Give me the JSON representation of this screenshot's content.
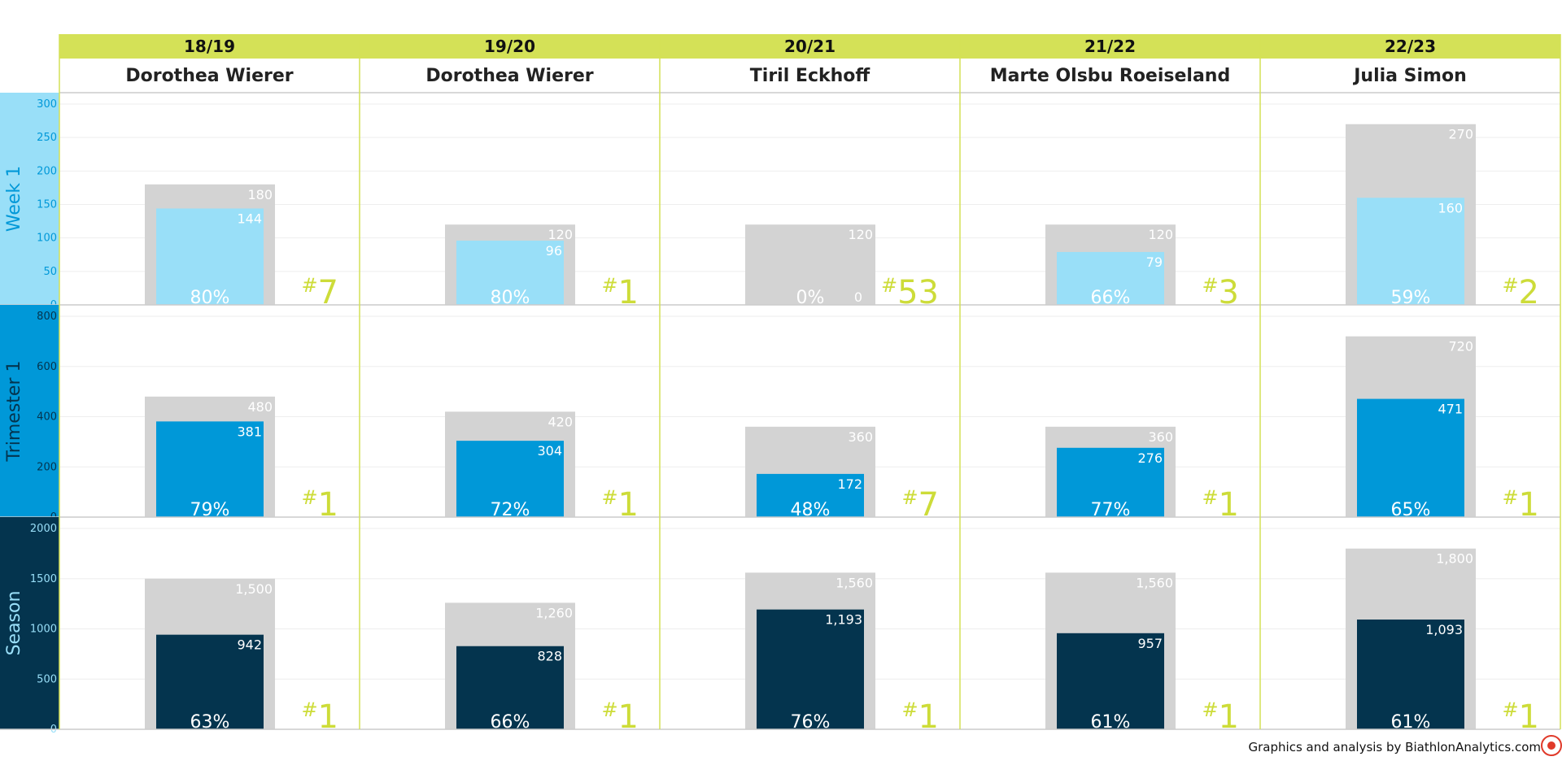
{
  "chart_data": {
    "type": "bar",
    "seasons": [
      "18/19",
      "19/20",
      "20/21",
      "21/22",
      "22/23"
    ],
    "winners": [
      "Dorothea Wierer",
      "Dorothea Wierer",
      "Tiril Eckhoff",
      "Marte Olsbu Roeiseland",
      "Julia Simon"
    ],
    "rows": [
      {
        "label": "Week 1",
        "ticks": [
          0,
          50,
          100,
          150,
          200,
          250,
          300
        ],
        "tick_labels": [
          "0",
          "50",
          "100",
          "150",
          "200",
          "250",
          "300"
        ],
        "ylim": [
          0,
          300
        ],
        "max_points": [
          180,
          120,
          120,
          120,
          270
        ],
        "max_labels": [
          "180",
          "120",
          "120",
          "120",
          "270"
        ],
        "points": [
          144,
          96,
          0,
          79,
          160
        ],
        "point_labels": [
          "144",
          "96",
          "0",
          "79",
          "160"
        ],
        "percent_labels": [
          "80%",
          "80%",
          "0%",
          "66%",
          "59%"
        ],
        "ranks": [
          "7",
          "1",
          "53",
          "3",
          "2"
        ]
      },
      {
        "label": "Trimester 1",
        "ticks": [
          0,
          200,
          400,
          600,
          800
        ],
        "tick_labels": [
          "0",
          "200",
          "400",
          "600",
          "800"
        ],
        "ylim": [
          0,
          800
        ],
        "max_points": [
          480,
          420,
          360,
          360,
          720
        ],
        "max_labels": [
          "480",
          "420",
          "360",
          "360",
          "720"
        ],
        "points": [
          381,
          304,
          172,
          276,
          471
        ],
        "point_labels": [
          "381",
          "304",
          "172",
          "276",
          "471"
        ],
        "percent_labels": [
          "79%",
          "72%",
          "48%",
          "77%",
          "65%"
        ],
        "ranks": [
          "1",
          "1",
          "7",
          "1",
          "1"
        ]
      },
      {
        "label": "Season",
        "ticks": [
          0,
          500,
          1000,
          1500,
          2000
        ],
        "tick_labels": [
          "0",
          "500",
          "1000",
          "1500",
          "2000"
        ],
        "ylim": [
          0,
          2000
        ],
        "max_points": [
          1500,
          1260,
          1560,
          1560,
          1800
        ],
        "max_labels": [
          "1,500",
          "1,260",
          "1,560",
          "1,560",
          "1,800"
        ],
        "points": [
          942,
          828,
          1193,
          957,
          1093
        ],
        "point_labels": [
          "942",
          "828",
          "1,193",
          "957",
          "1,093"
        ],
        "percent_labels": [
          "63%",
          "66%",
          "76%",
          "61%",
          "61%"
        ],
        "ranks": [
          "1",
          "1",
          "1",
          "1",
          "1"
        ]
      }
    ],
    "rank_prefix": "#"
  },
  "colors": {
    "header_band": "#d4e157",
    "row_colors": [
      "#99dff8",
      "#0098d8",
      "#04344e"
    ],
    "row_label_text": [
      "#0098d8",
      "#04344e",
      "#99dff8"
    ],
    "max_bar": "#d3d3d3",
    "rank": "#cddc39",
    "grid": "#eeeeee",
    "divider": "#d4e157"
  },
  "footer": {
    "credit": "Graphics and analysis by BiathlonAnalytics.com"
  }
}
